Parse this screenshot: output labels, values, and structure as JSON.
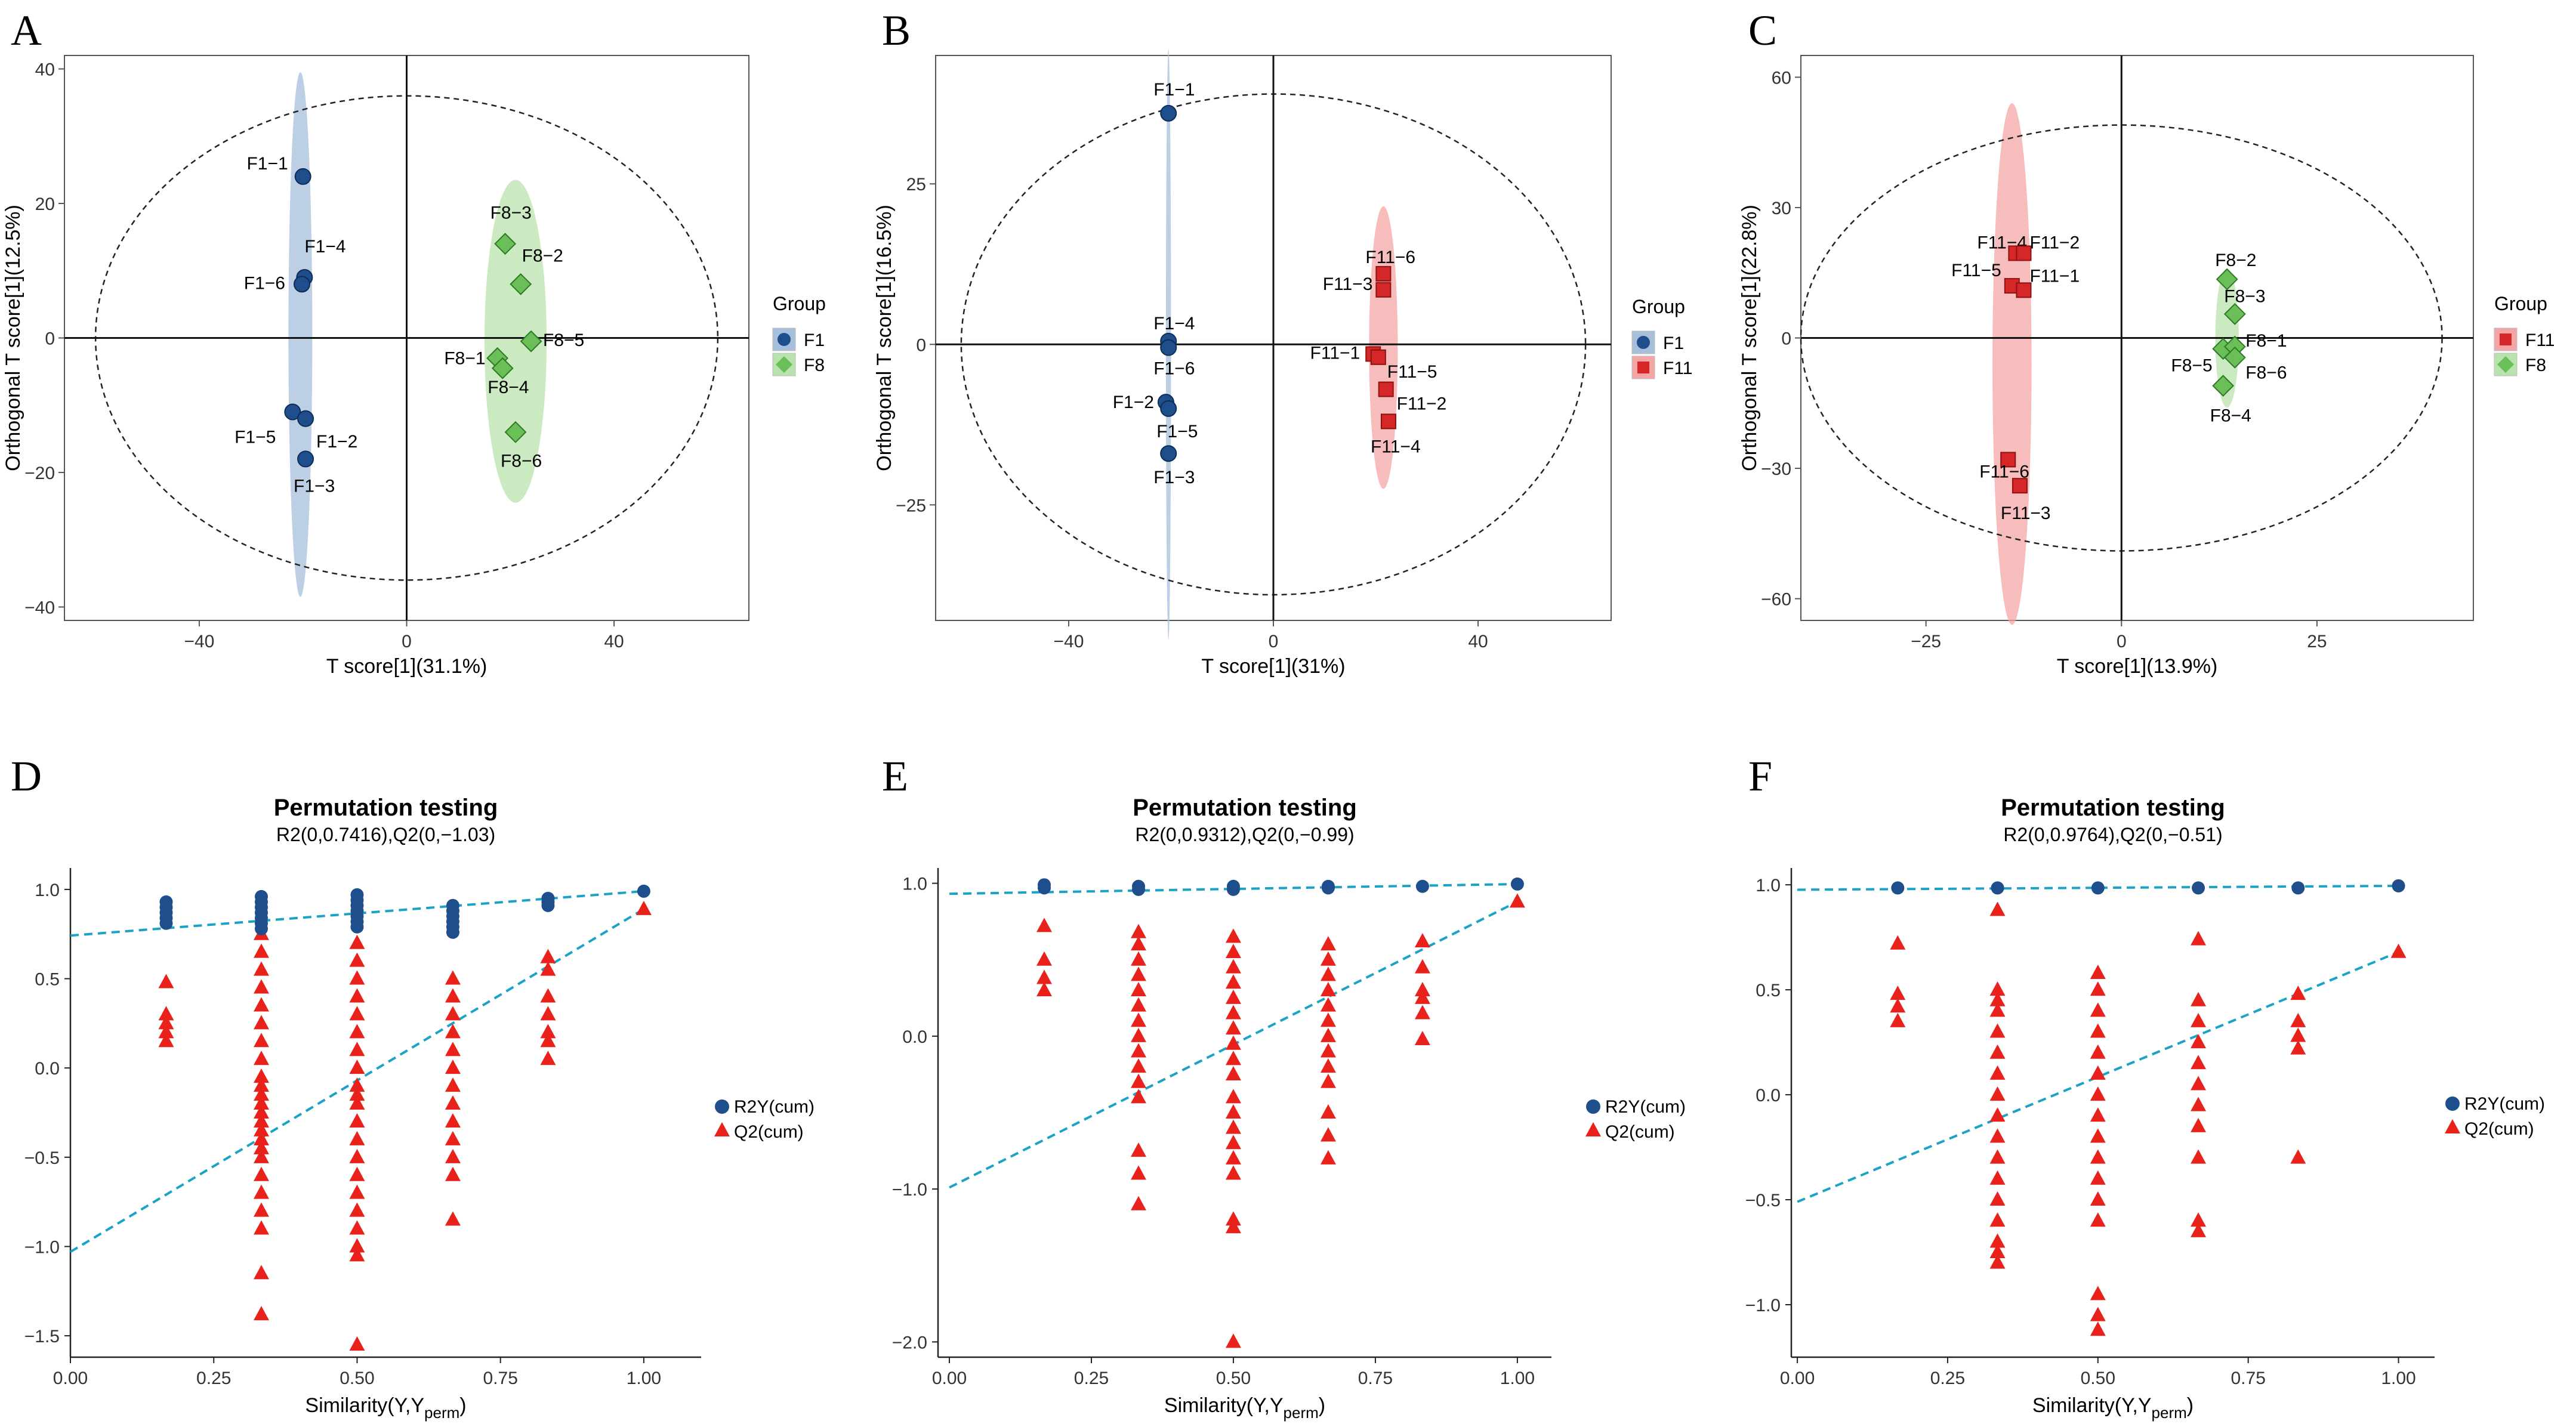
{
  "chart_data": [
    {
      "type": "scatter",
      "panel": "A",
      "xlabel": "T score[1](31.1%)",
      "ylabel": "Orthogonal T score[1](12.5%)",
      "xlim": [
        -66,
        66
      ],
      "ylim": [
        -42,
        42
      ],
      "xticks": [
        -40,
        0,
        40
      ],
      "xtick_labels": [
        "−40",
        "0",
        "40"
      ],
      "yticks": [
        40,
        20,
        0,
        -20,
        -40
      ],
      "ytick_labels": [
        "40",
        "20",
        "0",
        "−20",
        "−40"
      ],
      "legend_title": "Group",
      "ellipse_t2": {
        "rx": 60,
        "ry": 36
      },
      "series": [
        {
          "name": "F1",
          "shape": "circle",
          "color": "#1f4e8c",
          "ellipse_color": "#a7bfdb",
          "ellipse": {
            "cx": -20.5,
            "cy": 0.5,
            "rx": 2.3,
            "ry": 39
          },
          "points": [
            {
              "label": "F1−1",
              "x": -20,
              "y": 24
            },
            {
              "label": "F1−4",
              "x": -19.7,
              "y": 9
            },
            {
              "label": "F1−6",
              "x": -20.2,
              "y": 8
            },
            {
              "label": "F1−5",
              "x": -22,
              "y": -11
            },
            {
              "label": "F1−2",
              "x": -19.5,
              "y": -12
            },
            {
              "label": "F1−3",
              "x": -19.5,
              "y": -18
            }
          ]
        },
        {
          "name": "F8",
          "shape": "diamond",
          "color": "#6bbf59",
          "ellipse_color": "#b9e3ad",
          "ellipse": {
            "cx": 21,
            "cy": -0.5,
            "rx": 6,
            "ry": 24
          },
          "points": [
            {
              "label": "F8−3",
              "x": 19,
              "y": 14
            },
            {
              "label": "F8−2",
              "x": 22,
              "y": 8
            },
            {
              "label": "F8−5",
              "x": 24,
              "y": -0.5
            },
            {
              "label": "F8−1",
              "x": 17.5,
              "y": -3
            },
            {
              "label": "F8−4",
              "x": 18.5,
              "y": -4.5
            },
            {
              "label": "F8−6",
              "x": 21,
              "y": -14
            }
          ]
        }
      ]
    },
    {
      "type": "scatter",
      "panel": "B",
      "xlabel": "T score[1](31%)",
      "ylabel": "Orthogonal T score[1](16.5%)",
      "xlim": [
        -66,
        66
      ],
      "ylim": [
        -43,
        45
      ],
      "xticks": [
        -40,
        0,
        40
      ],
      "xtick_labels": [
        "−40",
        "0",
        "40"
      ],
      "yticks": [
        25,
        0,
        -25
      ],
      "ytick_labels": [
        "25",
        "0",
        "−25"
      ],
      "legend_title": "Group",
      "ellipse_t2": {
        "rx": 61,
        "ry": 39
      },
      "series": [
        {
          "name": "F1",
          "shape": "circle",
          "color": "#1f4e8c",
          "ellipse_color": "#a7bfdb",
          "ellipse": {
            "cx": -20.5,
            "cy": 0,
            "rx": 0.5,
            "ry": 46
          },
          "points": [
            {
              "label": "F1−1",
              "x": -20.5,
              "y": 36
            },
            {
              "label": "F1−4",
              "x": -20.5,
              "y": 0.5
            },
            {
              "label": "F1−6",
              "x": -20.5,
              "y": -0.5
            },
            {
              "label": "F1−2",
              "x": -21,
              "y": -9
            },
            {
              "label": "F1−5",
              "x": -20.5,
              "y": -10
            },
            {
              "label": "F1−3",
              "x": -20.5,
              "y": -17
            }
          ]
        },
        {
          "name": "F11",
          "shape": "square",
          "color": "#d62728",
          "ellipse_color": "#f4a6a6",
          "ellipse": {
            "cx": 21.5,
            "cy": -0.5,
            "rx": 2.8,
            "ry": 22
          },
          "points": [
            {
              "label": "F11−6",
              "x": 21.5,
              "y": 11
            },
            {
              "label": "F11−3",
              "x": 21.5,
              "y": 8.5
            },
            {
              "label": "F11−1",
              "x": 19.5,
              "y": -1.5
            },
            {
              "label": "F11−5",
              "x": 20.5,
              "y": -2
            },
            {
              "label": "F11−2",
              "x": 22,
              "y": -7
            },
            {
              "label": "F11−4",
              "x": 22.5,
              "y": -12
            }
          ]
        }
      ]
    },
    {
      "type": "scatter",
      "panel": "C",
      "xlabel": "T score[1](13.9%)",
      "ylabel": "Orthogonal T score[1](22.8%)",
      "xlim": [
        -41,
        45
      ],
      "ylim": [
        -65,
        65
      ],
      "xticks": [
        -25,
        0,
        25
      ],
      "xtick_labels": [
        "−25",
        "0",
        "25"
      ],
      "yticks": [
        60,
        30,
        0,
        -30,
        -60
      ],
      "ytick_labels": [
        "60",
        "30",
        "0",
        "−30",
        "−60"
      ],
      "legend_title": "Group",
      "ellipse_t2": {
        "rx": 41,
        "ry": 49
      },
      "series": [
        {
          "name": "F11",
          "shape": "square",
          "color": "#d62728",
          "ellipse_color": "#f4a6a6",
          "ellipse": {
            "cx": -14,
            "cy": -6,
            "rx": 2.5,
            "ry": 60
          },
          "points": [
            {
              "label": "F11−4",
              "x": -13.5,
              "y": 19.5
            },
            {
              "label": "F11−2",
              "x": -12.5,
              "y": 19.5
            },
            {
              "label": "F11−5",
              "x": -14,
              "y": 12
            },
            {
              "label": "F11−1",
              "x": -12.5,
              "y": 11
            },
            {
              "label": "F11−6",
              "x": -14.5,
              "y": -28
            },
            {
              "label": "F11−3",
              "x": -13,
              "y": -34
            }
          ]
        },
        {
          "name": "F8",
          "shape": "diamond",
          "color": "#6bbf59",
          "ellipse_color": "#b9e3ad",
          "ellipse": {
            "cx": 13.5,
            "cy": 0,
            "rx": 1.5,
            "ry": 16
          },
          "points": [
            {
              "label": "F8−2",
              "x": 13.5,
              "y": 13.5
            },
            {
              "label": "F8−3",
              "x": 14.5,
              "y": 5.5
            },
            {
              "label": "F8−5",
              "x": 13,
              "y": -2.5
            },
            {
              "label": "F8−1",
              "x": 14.5,
              "y": -2
            },
            {
              "label": "F8−6",
              "x": 14.5,
              "y": -4.5
            },
            {
              "label": "F8−4",
              "x": 13,
              "y": -11
            }
          ]
        }
      ]
    },
    {
      "type": "scatter",
      "panel": "D",
      "title": "Permutation testing",
      "subtitle": "R2(0,0.7416),Q2(0,−1.03)",
      "xlabel_main": "Similarity(Y,Y",
      "xlabel_sub": "perm",
      "xlabel_end": ")",
      "xlim": [
        0,
        1.1
      ],
      "ylim": [
        -1.62,
        1.12
      ],
      "xticks": [
        0,
        0.25,
        0.5,
        0.75,
        1
      ],
      "xtick_labels": [
        "0.00",
        "0.25",
        "0.50",
        "0.75",
        "1.00"
      ],
      "yticks": [
        1,
        0.5,
        0,
        -0.5,
        -1,
        -1.5
      ],
      "ytick_labels": [
        "1.0",
        "0.5",
        "0.0",
        "−0.5",
        "−1.0",
        "−1.5"
      ],
      "r2_line": {
        "intercept": 0.7416,
        "end": 0.99
      },
      "q2_line": {
        "intercept": -1.03,
        "end": 0.89
      },
      "r2y": [
        {
          "x": 0.167,
          "values": [
            0.93,
            0.9,
            0.87,
            0.84,
            0.81
          ]
        },
        {
          "x": 0.333,
          "values": [
            0.96,
            0.93,
            0.9,
            0.87,
            0.84,
            0.81,
            0.78
          ]
        },
        {
          "x": 0.5,
          "values": [
            0.97,
            0.94,
            0.91,
            0.88,
            0.85,
            0.82,
            0.79
          ]
        },
        {
          "x": 0.667,
          "values": [
            0.91,
            0.88,
            0.85,
            0.82,
            0.79,
            0.76
          ]
        },
        {
          "x": 0.833,
          "values": [
            0.95,
            0.93,
            0.91
          ]
        },
        {
          "x": 1.0,
          "values": [
            0.99
          ]
        }
      ],
      "q2": [
        {
          "x": 0.167,
          "values": [
            0.48,
            0.3,
            0.25,
            0.2,
            0.15
          ]
        },
        {
          "x": 0.333,
          "values": [
            0.75,
            0.65,
            0.55,
            0.45,
            0.35,
            0.25,
            0.15,
            0.05,
            -0.05,
            -0.1,
            -0.15,
            -0.2,
            -0.25,
            -0.3,
            -0.35,
            -0.4,
            -0.45,
            -0.5,
            -0.6,
            -0.7,
            -0.8,
            -0.9,
            -1.15,
            -1.38
          ]
        },
        {
          "x": 0.5,
          "values": [
            0.7,
            0.6,
            0.5,
            0.4,
            0.3,
            0.2,
            0.1,
            0.0,
            -0.1,
            -0.15,
            -0.2,
            -0.3,
            -0.4,
            -0.5,
            -0.6,
            -0.7,
            -0.8,
            -0.9,
            -1.0,
            -1.05,
            -1.55
          ]
        },
        {
          "x": 0.667,
          "values": [
            0.5,
            0.4,
            0.3,
            0.2,
            0.1,
            0.0,
            -0.1,
            -0.2,
            -0.3,
            -0.4,
            -0.5,
            -0.6,
            -0.85
          ]
        },
        {
          "x": 0.833,
          "values": [
            0.62,
            0.55,
            0.4,
            0.3,
            0.2,
            0.15,
            0.05
          ]
        },
        {
          "x": 1.0,
          "values": [
            0.89
          ]
        }
      ],
      "legend": [
        {
          "name": "R2Y(cum)",
          "color": "#1f4e8c"
        },
        {
          "name": "Q2(cum)",
          "color": "#e8211b"
        }
      ]
    },
    {
      "type": "scatter",
      "panel": "E",
      "title": "Permutation testing",
      "subtitle": "R2(0,0.9312),Q2(0,−0.99)",
      "xlabel_main": "Similarity(Y,Y",
      "xlabel_sub": "perm",
      "xlabel_end": ")",
      "xlim": [
        -0.02,
        1.06
      ],
      "ylim": [
        -2.1,
        1.1
      ],
      "xticks": [
        0,
        0.25,
        0.5,
        0.75,
        1
      ],
      "xtick_labels": [
        "0.00",
        "0.25",
        "0.50",
        "0.75",
        "1.00"
      ],
      "yticks": [
        1,
        0,
        -1,
        -2
      ],
      "ytick_labels": [
        "1.0",
        "0.0",
        "−1.0",
        "−2.0"
      ],
      "r2_line": {
        "intercept": 0.9312,
        "end": 0.995
      },
      "q2_line": {
        "intercept": -0.99,
        "end": 0.88
      },
      "r2y": [
        {
          "x": 0.167,
          "values": [
            0.99,
            0.97
          ]
        },
        {
          "x": 0.333,
          "values": [
            0.98,
            0.96
          ]
        },
        {
          "x": 0.5,
          "values": [
            0.98,
            0.96
          ]
        },
        {
          "x": 0.667,
          "values": [
            0.98,
            0.97
          ]
        },
        {
          "x": 0.833,
          "values": [
            0.98
          ]
        },
        {
          "x": 1.0,
          "values": [
            0.995
          ]
        }
      ],
      "q2": [
        {
          "x": 0.167,
          "values": [
            0.72,
            0.5,
            0.38,
            0.3
          ]
        },
        {
          "x": 0.333,
          "values": [
            0.68,
            0.6,
            0.5,
            0.4,
            0.3,
            0.2,
            0.1,
            0.0,
            -0.1,
            -0.2,
            -0.3,
            -0.4,
            -0.75,
            -0.9,
            -1.1
          ]
        },
        {
          "x": 0.5,
          "values": [
            0.65,
            0.55,
            0.45,
            0.35,
            0.25,
            0.15,
            0.05,
            -0.05,
            -0.15,
            -0.25,
            -0.4,
            -0.5,
            -0.6,
            -0.7,
            -0.8,
            -0.9,
            -1.2,
            -1.25,
            -2.0
          ]
        },
        {
          "x": 0.667,
          "values": [
            0.6,
            0.5,
            0.4,
            0.3,
            0.2,
            0.1,
            0.0,
            -0.1,
            -0.2,
            -0.3,
            -0.5,
            -0.65,
            -0.8
          ]
        },
        {
          "x": 0.833,
          "values": [
            0.62,
            0.45,
            0.3,
            0.25,
            0.15,
            -0.02
          ]
        },
        {
          "x": 1.0,
          "values": [
            0.88
          ]
        }
      ],
      "legend": [
        {
          "name": "R2Y(cum)",
          "color": "#1f4e8c"
        },
        {
          "name": "Q2(cum)",
          "color": "#e8211b"
        }
      ]
    },
    {
      "type": "scatter",
      "panel": "F",
      "title": "Permutation testing",
      "subtitle": "R2(0,0.9764),Q2(0,−0.51)",
      "xlabel_main": "Similarity(Y,Y",
      "xlabel_sub": "perm",
      "xlabel_end": ")",
      "xlim": [
        -0.01,
        1.06
      ],
      "ylim": [
        -1.25,
        1.08
      ],
      "xticks": [
        0,
        0.25,
        0.5,
        0.75,
        1
      ],
      "xtick_labels": [
        "0.00",
        "0.25",
        "0.50",
        "0.75",
        "1.00"
      ],
      "yticks": [
        1,
        0.5,
        0,
        -0.5,
        -1
      ],
      "ytick_labels": [
        "1.0",
        "0.5",
        "0.0",
        "−0.5",
        "−1.0"
      ],
      "r2_line": {
        "intercept": 0.9764,
        "end": 0.995
      },
      "q2_line": {
        "intercept": -0.51,
        "end": 0.68
      },
      "r2y": [
        {
          "x": 0.167,
          "values": [
            0.985
          ]
        },
        {
          "x": 0.333,
          "values": [
            0.985
          ]
        },
        {
          "x": 0.5,
          "values": [
            0.985
          ]
        },
        {
          "x": 0.667,
          "values": [
            0.985
          ]
        },
        {
          "x": 0.833,
          "values": [
            0.985
          ]
        },
        {
          "x": 1.0,
          "values": [
            0.995
          ]
        }
      ],
      "q2": [
        {
          "x": 0.167,
          "values": [
            0.72,
            0.48,
            0.42,
            0.35
          ]
        },
        {
          "x": 0.333,
          "values": [
            0.88,
            0.5,
            0.45,
            0.4,
            0.3,
            0.2,
            0.1,
            0.0,
            -0.1,
            -0.2,
            -0.3,
            -0.4,
            -0.5,
            -0.6,
            -0.7,
            -0.75,
            -0.8
          ]
        },
        {
          "x": 0.5,
          "values": [
            0.58,
            0.5,
            0.4,
            0.3,
            0.2,
            0.1,
            0.0,
            -0.1,
            -0.2,
            -0.3,
            -0.4,
            -0.5,
            -0.6,
            -0.95,
            -1.05,
            -1.12
          ]
        },
        {
          "x": 0.667,
          "values": [
            0.74,
            0.45,
            0.35,
            0.25,
            0.15,
            0.05,
            -0.05,
            -0.15,
            -0.3,
            -0.6,
            -0.65
          ]
        },
        {
          "x": 0.833,
          "values": [
            0.48,
            0.35,
            0.28,
            0.22,
            -0.3
          ]
        },
        {
          "x": 1.0,
          "values": [
            0.68
          ]
        }
      ],
      "legend": [
        {
          "name": "R2Y(cum)",
          "color": "#1f4e8c"
        },
        {
          "name": "Q2(cum)",
          "color": "#e8211b"
        }
      ]
    }
  ]
}
